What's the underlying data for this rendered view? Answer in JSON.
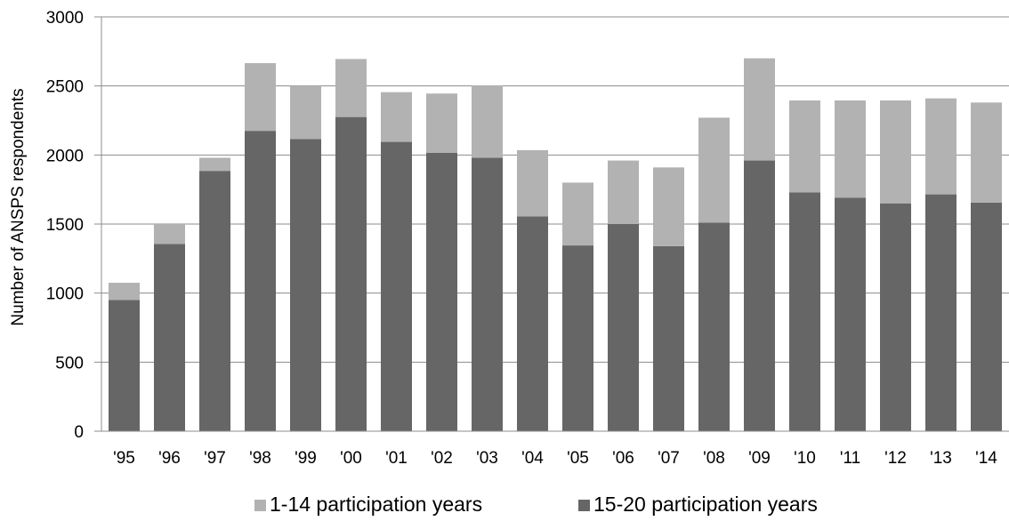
{
  "chart_data": {
    "type": "bar",
    "stacked": true,
    "title": "",
    "xlabel": "",
    "ylabel": "Number of ANSPS respondents",
    "ylim": [
      0,
      3000
    ],
    "yticks": [
      0,
      500,
      1000,
      1500,
      2000,
      2500,
      3000
    ],
    "grid": "horizontal",
    "legend_position": "bottom",
    "categories": [
      "'95",
      "'96",
      "'97",
      "'98",
      "'99",
      "'00",
      "'01",
      "'02",
      "'03",
      "'04",
      "'05",
      "'06",
      "'07",
      "'08",
      "'09",
      "'10",
      "'11",
      "'12",
      "'13",
      "'14"
    ],
    "series": [
      {
        "name": "15-20 participation years",
        "color": "#666667",
        "values": [
          950,
          1355,
          1885,
          2175,
          2115,
          2275,
          2095,
          2015,
          1980,
          1555,
          1345,
          1500,
          1340,
          1510,
          1960,
          1730,
          1690,
          1650,
          1715,
          1655
        ]
      },
      {
        "name": "1-14 participation years",
        "color": "#b2b2b2",
        "values": [
          125,
          145,
          95,
          490,
          385,
          420,
          360,
          430,
          525,
          480,
          455,
          460,
          570,
          760,
          740,
          665,
          705,
          745,
          695,
          725
        ]
      }
    ],
    "legend_order": [
      "1-14 participation years",
      "15-20 participation years"
    ]
  }
}
